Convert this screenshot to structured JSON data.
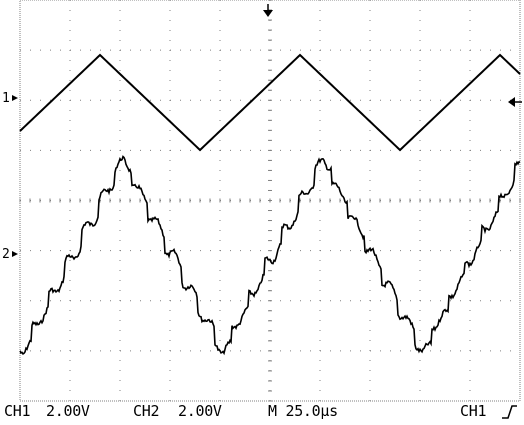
{
  "channel_markers": {
    "ch1": "1",
    "ch2": "2"
  },
  "readouts": {
    "ch1_label": "CH1",
    "ch1_scale": "2.00V",
    "ch2_label": "CH2",
    "ch2_scale": "2.00V",
    "timebase": "M 25.0µs",
    "trigger_source": "CH1",
    "trigger_slope_icon": "rising-edge-icon"
  },
  "icons": {
    "trigger_position": "down-arrow-icon",
    "trigger_level": "left-arrow-icon",
    "ch1_ground": "right-arrow-icon",
    "ch2_ground": "right-arrow-icon"
  },
  "colors": {
    "trace": "#000000",
    "grid": "#808080",
    "background": "#ffffff"
  }
}
